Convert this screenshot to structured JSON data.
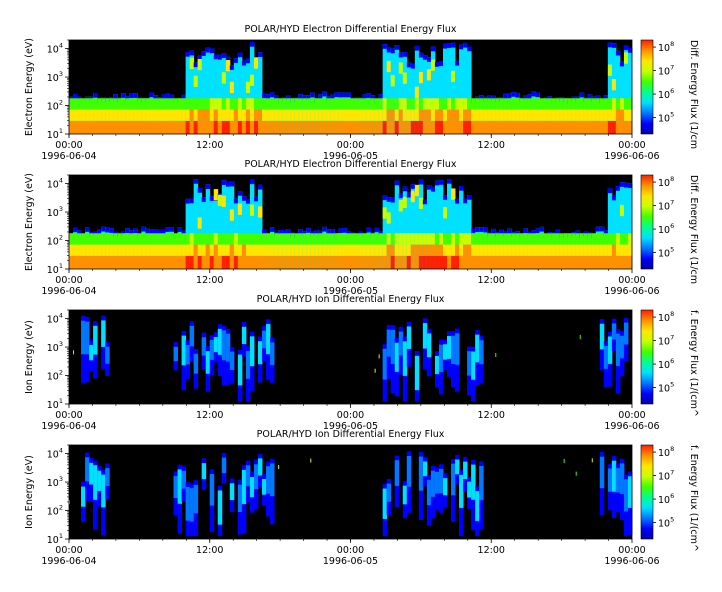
{
  "chart_data": [
    {
      "type": "heatmap",
      "title": "POLAR/HYD  Electron Differential Energy Flux",
      "ylabel": "Electron Energy (eV)",
      "colorbar_label": "Diff. Energy Flux (1/cm",
      "y_scale": "log",
      "y_range": [
        10,
        20000
      ],
      "y_ticks": [
        "10^1",
        "10^2",
        "10^3",
        "10^4"
      ],
      "x_range": [
        "1996-06-04 00:00",
        "1996-06-06 00:00"
      ],
      "x_ticks": [
        {
          "time": "00:00",
          "date": "1996-06-04"
        },
        {
          "time": "12:00",
          "date": ""
        },
        {
          "time": "00:00",
          "date": "1996-06-05"
        },
        {
          "time": "12:00",
          "date": ""
        },
        {
          "time": "00:00",
          "date": "1996-06-06"
        }
      ],
      "colorbar_ticks": [
        "10^5",
        "10^6",
        "10^7",
        "10^8"
      ],
      "colorbar_range": [
        20000,
        200000000
      ]
    },
    {
      "type": "heatmap",
      "title": "POLAR/HYD  Electron Differential Energy Flux",
      "ylabel": "Electron Energy (eV)",
      "colorbar_label": "Diff. Energy Flux (1/cm",
      "y_scale": "log",
      "y_range": [
        10,
        20000
      ],
      "y_ticks": [
        "10^1",
        "10^2",
        "10^3",
        "10^4"
      ],
      "x_range": [
        "1996-06-04 00:00",
        "1996-06-06 00:00"
      ],
      "x_ticks": [
        {
          "time": "00:00",
          "date": "1996-06-04"
        },
        {
          "time": "12:00",
          "date": ""
        },
        {
          "time": "00:00",
          "date": "1996-06-05"
        },
        {
          "time": "12:00",
          "date": ""
        },
        {
          "time": "00:00",
          "date": "1996-06-06"
        }
      ],
      "colorbar_ticks": [
        "10^5",
        "10^6",
        "10^7",
        "10^8"
      ],
      "colorbar_range": [
        20000,
        200000000
      ]
    },
    {
      "type": "heatmap",
      "title": "POLAR/HYD  Ion Differential Energy Flux",
      "ylabel": "Ion Energy (eV)",
      "colorbar_label": "f. Energy Flux (1/(cm^",
      "y_scale": "log",
      "y_range": [
        10,
        20000
      ],
      "y_ticks": [
        "10^1",
        "10^2",
        "10^3",
        "10^4"
      ],
      "x_range": [
        "1996-06-04 00:00",
        "1996-06-06 00:00"
      ],
      "x_ticks": [
        {
          "time": "00:00",
          "date": "1996-06-04"
        },
        {
          "time": "12:00",
          "date": ""
        },
        {
          "time": "00:00",
          "date": "1996-06-05"
        },
        {
          "time": "12:00",
          "date": ""
        },
        {
          "time": "00:00",
          "date": "1996-06-06"
        }
      ],
      "colorbar_ticks": [
        "10^5",
        "10^6",
        "10^7",
        "10^8"
      ],
      "colorbar_range": [
        20000,
        200000000
      ]
    },
    {
      "type": "heatmap",
      "title": "POLAR/HYD  Ion Differential Energy Flux",
      "ylabel": "Ion Energy (eV)",
      "colorbar_label": "f. Energy Flux (1/(cm^",
      "y_scale": "log",
      "y_range": [
        10,
        20000
      ],
      "y_ticks": [
        "10^1",
        "10^2",
        "10^3",
        "10^4"
      ],
      "x_range": [
        "1996-06-04 00:00",
        "1996-06-06 00:00"
      ],
      "x_ticks": [
        {
          "time": "00:00",
          "date": "1996-06-04"
        },
        {
          "time": "12:00",
          "date": ""
        },
        {
          "time": "00:00",
          "date": "1996-06-05"
        },
        {
          "time": "12:00",
          "date": ""
        },
        {
          "time": "00:00",
          "date": "1996-06-06"
        }
      ],
      "colorbar_ticks": [
        "10^5",
        "10^6",
        "10^7",
        "10^8"
      ],
      "colorbar_range": [
        20000,
        200000000
      ]
    }
  ],
  "colors": {
    "background": "#ffffff",
    "plot_fill": "#000000",
    "colormap": [
      "#0000a0",
      "#0000ff",
      "#0078ff",
      "#00e0ff",
      "#00ff90",
      "#40ff00",
      "#c8ff00",
      "#ffe600",
      "#ff9000",
      "#ff2000"
    ]
  }
}
